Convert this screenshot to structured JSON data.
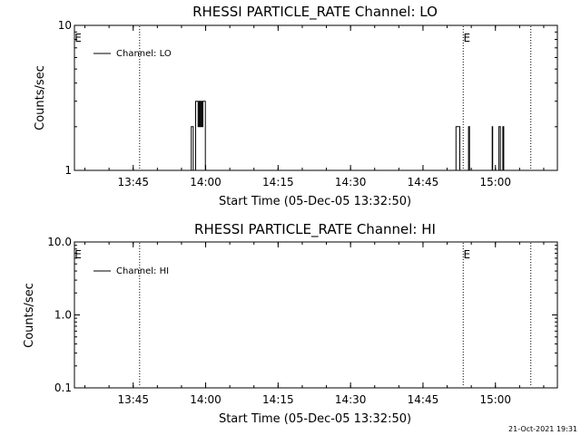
{
  "timestamp": "21-Oct-2021 19:31",
  "chart_data": [
    {
      "type": "line",
      "title": "RHESSI PARTICLE_RATE Channel: LO",
      "xlabel": "Start Time (05-Dec-05 13:32:50)",
      "ylabel": "Counts/sec",
      "y_scale": "log",
      "ylim": [
        1,
        10
      ],
      "xlim_minutes_after_1332": [
        0,
        100
      ],
      "x_ticks": [
        "13:45",
        "14:00",
        "14:15",
        "14:30",
        "14:45",
        "15:00"
      ],
      "x_tick_minutes": [
        12.17,
        27.17,
        42.17,
        57.17,
        72.17,
        87.17
      ],
      "y_ticks": [
        "1",
        "10"
      ],
      "y_tick_values": [
        1,
        10
      ],
      "legend": "Channel: LO",
      "legend_position": "top-left",
      "dotted_lines_minutes": [
        13.5,
        80.5,
        94.5
      ],
      "markers": [
        {
          "label": "E",
          "minute": 0.0
        },
        {
          "label": "E",
          "minute": 80.5
        }
      ],
      "series": [
        {
          "name": "Channel: LO",
          "points": [
            [
              24.0,
              1
            ],
            [
              24.2,
              2
            ],
            [
              24.5,
              2
            ],
            [
              24.6,
              1
            ],
            [
              24.9,
              1
            ],
            [
              25.1,
              3
            ],
            [
              25.4,
              3
            ],
            [
              25.6,
              2
            ],
            [
              25.8,
              3
            ],
            [
              26.0,
              2
            ],
            [
              26.2,
              3
            ],
            [
              26.4,
              2
            ],
            [
              26.6,
              3
            ],
            [
              26.9,
              3
            ],
            [
              27.1,
              1
            ],
            [
              28.6,
              1
            ],
            [
              78.8,
              1
            ],
            [
              79.0,
              2
            ],
            [
              79.6,
              2
            ],
            [
              79.8,
              1
            ],
            [
              81.4,
              1
            ],
            [
              81.6,
              2
            ],
            [
              81.8,
              1
            ],
            [
              86.3,
              1
            ],
            [
              86.5,
              2
            ],
            [
              86.6,
              1
            ],
            [
              87.7,
              1
            ],
            [
              87.9,
              2
            ],
            [
              88.2,
              1
            ],
            [
              88.5,
              1
            ],
            [
              88.7,
              2
            ],
            [
              88.9,
              1
            ]
          ]
        }
      ]
    },
    {
      "type": "line",
      "title": "RHESSI PARTICLE_RATE Channel: HI",
      "xlabel": "Start Time (05-Dec-05 13:32:50)",
      "ylabel": "Counts/sec",
      "y_scale": "log",
      "ylim": [
        0.1,
        10
      ],
      "xlim_minutes_after_1332": [
        0,
        100
      ],
      "x_ticks": [
        "13:45",
        "14:00",
        "14:15",
        "14:30",
        "14:45",
        "15:00"
      ],
      "x_tick_minutes": [
        12.17,
        27.17,
        42.17,
        57.17,
        72.17,
        87.17
      ],
      "y_ticks": [
        "0.1",
        "1.0",
        "10.0"
      ],
      "y_tick_values": [
        0.1,
        1,
        10
      ],
      "legend": "Channel: HI",
      "legend_position": "top-left",
      "dotted_lines_minutes": [
        13.5,
        80.5,
        94.5
      ],
      "markers": [
        {
          "label": "E",
          "minute": 0.0
        },
        {
          "label": "E",
          "minute": 80.5
        }
      ],
      "series": [
        {
          "name": "Channel: HI",
          "points": []
        }
      ]
    }
  ]
}
